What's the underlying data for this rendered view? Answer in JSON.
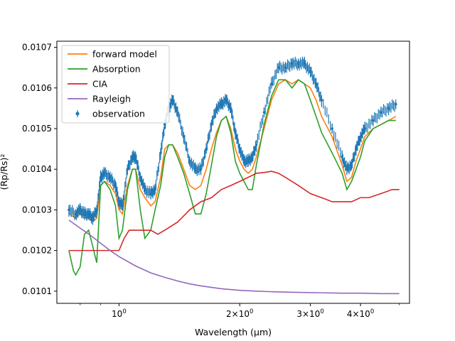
{
  "chart_data": {
    "type": "line",
    "title": "",
    "xlabel": "Wavelength (μm)",
    "ylabel": "(Rp/Rs)²",
    "xscale": "log",
    "xlim": [
      0.7,
      5.3
    ],
    "ylim": [
      0.01007,
      0.010715
    ],
    "grid": false,
    "legend_position": "top-left",
    "x_ticks": [
      {
        "value": 1.0,
        "base": "10",
        "exp": "0"
      },
      {
        "value": 2.0,
        "base": "2×10",
        "exp": "0"
      },
      {
        "value": 3.0,
        "base": "3×10",
        "exp": "0"
      },
      {
        "value": 4.0,
        "base": "4×10",
        "exp": "0"
      }
    ],
    "y_ticks": [
      {
        "value": 0.0101,
        "label": "0.0101"
      },
      {
        "value": 0.0102,
        "label": "0.0102"
      },
      {
        "value": 0.0103,
        "label": "0.0103"
      },
      {
        "value": 0.0104,
        "label": "0.0104"
      },
      {
        "value": 0.0105,
        "label": "0.0105"
      },
      {
        "value": 0.0106,
        "label": "0.0106"
      },
      {
        "value": 0.0107,
        "label": "0.0107"
      }
    ],
    "series": [
      {
        "name": "forward model",
        "color": "#ff7f0e",
        "kind": "line",
        "x": [
          0.75,
          0.78,
          0.8,
          0.82,
          0.84,
          0.86,
          0.88,
          0.9,
          0.92,
          0.95,
          0.98,
          1.0,
          1.02,
          1.05,
          1.08,
          1.1,
          1.13,
          1.16,
          1.2,
          1.23,
          1.27,
          1.3,
          1.33,
          1.36,
          1.4,
          1.45,
          1.5,
          1.55,
          1.6,
          1.65,
          1.7,
          1.75,
          1.8,
          1.85,
          1.9,
          1.95,
          2.0,
          2.05,
          2.1,
          2.15,
          2.2,
          2.3,
          2.4,
          2.5,
          2.6,
          2.7,
          2.8,
          2.9,
          3.0,
          3.1,
          3.2,
          3.4,
          3.6,
          3.7,
          3.8,
          3.9,
          4.0,
          4.1,
          4.3,
          4.5,
          4.7,
          4.9
        ],
        "y": [
          0.01029,
          0.01028,
          0.01029,
          0.01028,
          0.01028,
          0.01027,
          0.01028,
          0.01036,
          0.01037,
          0.01036,
          0.01034,
          0.0103,
          0.01029,
          0.01036,
          0.0104,
          0.0104,
          0.01035,
          0.01033,
          0.01031,
          0.01032,
          0.01038,
          0.01045,
          0.01046,
          0.01046,
          0.01044,
          0.0104,
          0.01036,
          0.01035,
          0.01036,
          0.0104,
          0.01045,
          0.01049,
          0.01052,
          0.01053,
          0.0105,
          0.01045,
          0.01042,
          0.0104,
          0.01039,
          0.0104,
          0.01043,
          0.0105,
          0.01057,
          0.01061,
          0.01062,
          0.01061,
          0.01062,
          0.01061,
          0.0106,
          0.01057,
          0.01053,
          0.01048,
          0.01041,
          0.01037,
          0.01038,
          0.01042,
          0.01045,
          0.01048,
          0.0105,
          0.01051,
          0.01052,
          0.01053
        ]
      },
      {
        "name": "Absorption",
        "color": "#2ca02c",
        "kind": "line",
        "x": [
          0.75,
          0.77,
          0.78,
          0.8,
          0.82,
          0.84,
          0.86,
          0.88,
          0.9,
          0.92,
          0.95,
          0.98,
          1.0,
          1.02,
          1.05,
          1.08,
          1.1,
          1.13,
          1.16,
          1.2,
          1.23,
          1.27,
          1.3,
          1.33,
          1.36,
          1.4,
          1.45,
          1.5,
          1.55,
          1.6,
          1.65,
          1.7,
          1.75,
          1.8,
          1.85,
          1.9,
          1.95,
          2.0,
          2.05,
          2.1,
          2.15,
          2.2,
          2.3,
          2.4,
          2.5,
          2.6,
          2.7,
          2.8,
          2.9,
          3.0,
          3.1,
          3.2,
          3.4,
          3.6,
          3.7,
          3.8,
          3.9,
          4.0,
          4.1,
          4.3,
          4.5,
          4.7,
          4.9
        ],
        "y": [
          0.0102,
          0.01015,
          0.01014,
          0.01016,
          0.01024,
          0.01025,
          0.01021,
          0.01017,
          0.01036,
          0.01037,
          0.01035,
          0.01031,
          0.01023,
          0.01025,
          0.01035,
          0.0104,
          0.0104,
          0.0103,
          0.01023,
          0.01025,
          0.0103,
          0.01036,
          0.01043,
          0.01046,
          0.01046,
          0.01043,
          0.01039,
          0.01034,
          0.01029,
          0.01029,
          0.01034,
          0.01041,
          0.01048,
          0.01052,
          0.01053,
          0.01049,
          0.01042,
          0.01039,
          0.01037,
          0.01035,
          0.01035,
          0.01041,
          0.01051,
          0.01058,
          0.01062,
          0.01062,
          0.0106,
          0.01062,
          0.01061,
          0.01057,
          0.01053,
          0.01049,
          0.01044,
          0.01039,
          0.01035,
          0.01037,
          0.0104,
          0.01043,
          0.01047,
          0.0105,
          0.01051,
          0.01052,
          0.01052
        ]
      },
      {
        "name": "CIA",
        "color": "#d62728",
        "kind": "line",
        "x": [
          0.75,
          0.8,
          0.85,
          0.9,
          0.95,
          0.98,
          1.0,
          1.03,
          1.06,
          1.1,
          1.15,
          1.2,
          1.25,
          1.3,
          1.4,
          1.5,
          1.6,
          1.7,
          1.8,
          1.9,
          2.0,
          2.1,
          2.2,
          2.3,
          2.4,
          2.5,
          2.6,
          2.8,
          3.0,
          3.2,
          3.4,
          3.6,
          3.8,
          4.0,
          4.2,
          4.5,
          4.8,
          5.0
        ],
        "y": [
          0.0102,
          0.0102,
          0.0102,
          0.0102,
          0.0102,
          0.0102,
          0.0102,
          0.01023,
          0.01025,
          0.01025,
          0.01025,
          0.01025,
          0.01024,
          0.01025,
          0.01027,
          0.0103,
          0.01032,
          0.01033,
          0.01035,
          0.01036,
          0.01037,
          0.01038,
          0.01039,
          0.010392,
          0.010395,
          0.01039,
          0.01038,
          0.01036,
          0.01034,
          0.01033,
          0.01032,
          0.01032,
          0.01032,
          0.01033,
          0.01033,
          0.01034,
          0.01035,
          0.01035
        ]
      },
      {
        "name": "Rayleigh",
        "color": "#9467bd",
        "kind": "line",
        "x": [
          0.75,
          0.8,
          0.85,
          0.9,
          0.95,
          1.0,
          1.1,
          1.2,
          1.3,
          1.4,
          1.5,
          1.6,
          1.8,
          2.0,
          2.2,
          2.5,
          2.8,
          3.2,
          3.6,
          4.0,
          4.5,
          5.0
        ],
        "y": [
          0.010275,
          0.010255,
          0.010237,
          0.010218,
          0.0102,
          0.010185,
          0.010162,
          0.010145,
          0.010134,
          0.010125,
          0.010118,
          0.010113,
          0.010106,
          0.010102,
          0.0101,
          0.010098,
          0.010097,
          0.010096,
          0.010095,
          0.010095,
          0.010094,
          0.010094
        ]
      },
      {
        "name": "observation",
        "color": "#1f77b4",
        "kind": "errorbar",
        "err": 1.2e-05,
        "x": [
          0.75,
          0.78,
          0.8,
          0.82,
          0.84,
          0.86,
          0.88,
          0.9,
          0.92,
          0.95,
          0.98,
          1.0,
          1.02,
          1.05,
          1.08,
          1.1,
          1.13,
          1.16,
          1.2,
          1.23,
          1.27,
          1.3,
          1.33,
          1.36,
          1.4,
          1.45,
          1.5,
          1.55,
          1.6,
          1.65,
          1.7,
          1.75,
          1.8,
          1.85,
          1.9,
          1.95,
          2.0,
          2.05,
          2.1,
          2.15,
          2.2,
          2.3,
          2.4,
          2.5,
          2.6,
          2.7,
          2.8,
          2.9,
          3.0,
          3.1,
          3.2,
          3.4,
          3.6,
          3.7,
          3.8,
          3.9,
          4.0,
          4.1,
          4.3,
          4.5,
          4.7,
          4.9
        ],
        "y": [
          0.0103,
          0.01029,
          0.0103,
          0.01029,
          0.01029,
          0.01028,
          0.0103,
          0.01038,
          0.01039,
          0.01038,
          0.01036,
          0.01032,
          0.01031,
          0.0104,
          0.01043,
          0.01043,
          0.01038,
          0.01035,
          0.01034,
          0.01035,
          0.01044,
          0.01051,
          0.01055,
          0.01057,
          0.01054,
          0.01048,
          0.01042,
          0.0104,
          0.0104,
          0.01045,
          0.01051,
          0.01055,
          0.01056,
          0.01057,
          0.01055,
          0.01049,
          0.01045,
          0.01042,
          0.01042,
          0.01043,
          0.01046,
          0.01054,
          0.01061,
          0.01065,
          0.01065,
          0.01066,
          0.01066,
          0.01066,
          0.01064,
          0.01061,
          0.01057,
          0.0105,
          0.01043,
          0.0104,
          0.01041,
          0.01045,
          0.01048,
          0.0105,
          0.01052,
          0.01054,
          0.01055,
          0.01056
        ]
      }
    ]
  }
}
